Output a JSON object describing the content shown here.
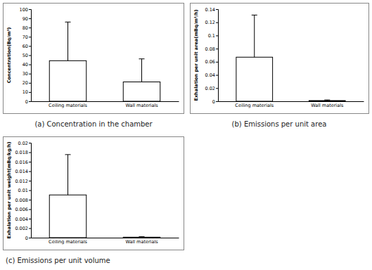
{
  "chart_data": [
    {
      "type": "bar",
      "title": "(a) Concentration in the chamber",
      "y_label": "Concentration(Bq/m³)",
      "categories": [
        "Ceiling materials",
        "Wall materials"
      ],
      "values": [
        44,
        21
      ],
      "errors": [
        42,
        25
      ],
      "color": "#ffffff",
      "ylim": [
        0,
        100
      ],
      "yticks": [
        0,
        10,
        20,
        30,
        40,
        50,
        60,
        70,
        80,
        90,
        100
      ],
      "grid": false
    },
    {
      "type": "bar",
      "title": "(b) Emissions per unit area",
      "y_label": "Exhalation per unit area(mBq/m²/h)",
      "categories": [
        "Ceiling materials",
        "Wall materials"
      ],
      "values": [
        0.067,
        0.001
      ],
      "errors": [
        0.064,
        0.001
      ],
      "color": "#ffffff",
      "ylim": [
        0,
        0.14
      ],
      "yticks": [
        0,
        0.02,
        0.04,
        0.06,
        0.08,
        0.1,
        0.12,
        0.14
      ],
      "grid": false
    },
    {
      "type": "bar",
      "title": "(c) Emissions per unit volume",
      "y_label": "Exhalation per unit weight(mBq/kg/h)",
      "categories": [
        "Ceiling materials",
        "Wall materials"
      ],
      "values": [
        0.009,
        0.0001
      ],
      "errors": [
        0.0085,
        0.0001
      ],
      "color": "#ffffff",
      "ylim": [
        0,
        0.02
      ],
      "yticks": [
        0,
        0.002,
        0.004,
        0.006,
        0.008,
        0.01,
        0.012,
        0.014,
        0.016,
        0.018,
        0.02
      ],
      "grid": false
    }
  ]
}
